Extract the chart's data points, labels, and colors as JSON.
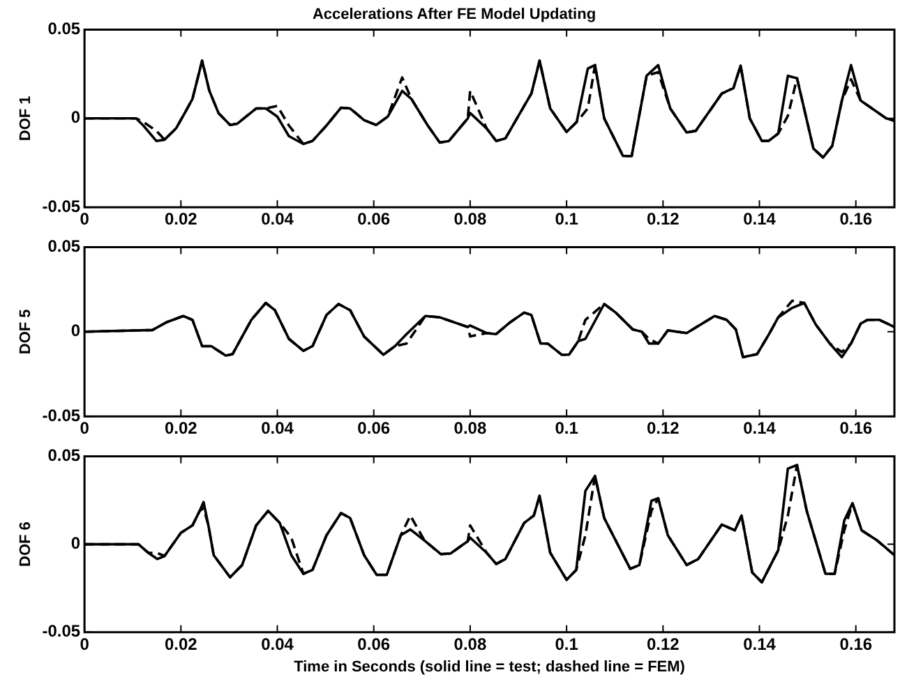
{
  "chart_data": [
    {
      "type": "line",
      "title": "Accelerations After FE Model Updating",
      "ylabel": "DOF 1",
      "xlim": [
        0,
        0.168
      ],
      "xticks": [
        0,
        0.02,
        0.04,
        0.06,
        0.08,
        0.1,
        0.12,
        0.14,
        0.16
      ],
      "ylim": [
        -0.05,
        0.05
      ],
      "yticks": [
        -0.05,
        0,
        0.05
      ],
      "grid": false,
      "legend": false,
      "marker": "none",
      "x": [
        0,
        0.0107,
        0.0122,
        0.0149,
        0.0166,
        0.019,
        0.021,
        0.0224,
        0.0244,
        0.0259,
        0.0278,
        0.0302,
        0.0317,
        0.0356,
        0.0376,
        0.04,
        0.0424,
        0.0454,
        0.0473,
        0.0502,
        0.0532,
        0.0551,
        0.058,
        0.0605,
        0.0629,
        0.0659,
        0.0678,
        0.0712,
        0.0737,
        0.0756,
        0.0795,
        0.08,
        0.0834,
        0.0854,
        0.0873,
        0.0912,
        0.0927,
        0.0944,
        0.0966,
        0.1,
        0.1021,
        0.1044,
        0.1059,
        0.1078,
        0.1117,
        0.1135,
        0.1166,
        0.119,
        0.1215,
        0.1249,
        0.1268,
        0.1322,
        0.1346,
        0.1361,
        0.138,
        0.1405,
        0.1419,
        0.1439,
        0.1459,
        0.1478,
        0.1512,
        0.1532,
        0.1551,
        0.1571,
        0.159,
        0.161,
        0.1663,
        0.168
      ],
      "series": [
        {
          "color": "#000000",
          "line_style": "solid",
          "values": [
            0,
            0,
            -0.004,
            -0.0127,
            -0.012,
            -0.0056,
            0.004,
            0.011,
            0.0325,
            0.0155,
            0.003,
            -0.0037,
            -0.003,
            0.0056,
            0.0056,
            0.001,
            -0.01,
            -0.0144,
            -0.0127,
            -0.004,
            0.006,
            0.0056,
            -0.001,
            -0.0037,
            0.001,
            0.0155,
            0.011,
            -0.004,
            -0.0136,
            -0.0127,
            0,
            0.003,
            -0.0056,
            -0.0127,
            -0.0113,
            0.007,
            0.014,
            0.0325,
            0.0056,
            -0.0076,
            -0.002,
            0.028,
            0.03,
            0,
            -0.0212,
            -0.0212,
            0.024,
            0.03,
            0.0056,
            -0.0079,
            -0.007,
            0.014,
            0.017,
            0.0297,
            0,
            -0.0127,
            -0.0127,
            -0.0085,
            0.024,
            0.0226,
            -0.017,
            -0.022,
            -0.0155,
            0.01,
            0.03,
            0.01,
            0,
            -0.0014
          ]
        },
        {
          "color": "#000000",
          "line_style": "dashed",
          "values": [
            0,
            0,
            -0.002,
            -0.007,
            -0.012,
            -0.0056,
            0.004,
            0.011,
            0.0325,
            0.0155,
            0.003,
            -0.0037,
            -0.003,
            0.0056,
            0.0056,
            0.007,
            -0.004,
            -0.0144,
            -0.0127,
            -0.004,
            0.006,
            0.0056,
            -0.001,
            -0.0037,
            0.001,
            0.023,
            0.011,
            -0.004,
            -0.0136,
            -0.0127,
            0,
            0.0155,
            -0.0056,
            -0.0127,
            -0.0113,
            0.007,
            0.014,
            0.0325,
            0.0056,
            -0.0076,
            -0.002,
            0.0056,
            0.03,
            0,
            -0.0212,
            -0.0212,
            0.024,
            0.026,
            0.0056,
            -0.0079,
            -0.007,
            0.014,
            0.017,
            0.0297,
            0,
            -0.0127,
            -0.0127,
            -0.0085,
            0.0014,
            0.0226,
            -0.017,
            -0.022,
            -0.0155,
            0.01,
            0.022,
            0.01,
            0,
            -0.0014
          ]
        }
      ]
    },
    {
      "type": "line",
      "ylabel": "DOF 5",
      "xlim": [
        0,
        0.168
      ],
      "xticks": [
        0,
        0.02,
        0.04,
        0.06,
        0.08,
        0.1,
        0.12,
        0.14,
        0.16
      ],
      "ylim": [
        -0.05,
        0.05
      ],
      "yticks": [
        -0.05,
        0,
        0.05
      ],
      "grid": false,
      "legend": false,
      "marker": "none",
      "x": [
        0,
        0.0141,
        0.017,
        0.0205,
        0.0224,
        0.0244,
        0.0263,
        0.0293,
        0.0307,
        0.0346,
        0.0376,
        0.0395,
        0.0424,
        0.0454,
        0.0473,
        0.0502,
        0.0527,
        0.0551,
        0.058,
        0.062,
        0.0644,
        0.0668,
        0.0707,
        0.0737,
        0.0795,
        0.08,
        0.0834,
        0.0854,
        0.0883,
        0.0912,
        0.0927,
        0.0946,
        0.0961,
        0.099,
        0.1005,
        0.1024,
        0.1039,
        0.1078,
        0.1102,
        0.1137,
        0.1156,
        0.1171,
        0.119,
        0.121,
        0.1249,
        0.1307,
        0.1332,
        0.1351,
        0.1366,
        0.1395,
        0.142,
        0.1439,
        0.1468,
        0.1493,
        0.1517,
        0.1546,
        0.1571,
        0.159,
        0.161,
        0.1624,
        0.1649,
        0.168
      ],
      "series": [
        {
          "color": "#000000",
          "line_style": "solid",
          "values": [
            0,
            0.001,
            0.0056,
            0.0093,
            0.007,
            -0.0085,
            -0.0085,
            -0.0141,
            -0.0133,
            0.007,
            0.017,
            0.0127,
            -0.0042,
            -0.0113,
            -0.0085,
            0.0099,
            0.0164,
            0.0127,
            -0.0028,
            -0.0136,
            -0.0085,
            -0.0014,
            0.0093,
            0.0085,
            0.0028,
            0.0037,
            -0.0008,
            -0.0014,
            0.0056,
            0.0113,
            0.0099,
            -0.007,
            -0.007,
            -0.0136,
            -0.0136,
            -0.0056,
            -0.0042,
            0.0164,
            0.0113,
            0.0014,
            0,
            -0.007,
            -0.007,
            0.0008,
            -0.0008,
            0.0093,
            0.007,
            0.0014,
            -0.015,
            -0.0133,
            -0.0014,
            0.0085,
            0.0141,
            0.017,
            0.0042,
            -0.007,
            -0.015,
            -0.007,
            0.0048,
            0.007,
            0.007,
            0.0028
          ]
        },
        {
          "color": "#000000",
          "line_style": "dashed",
          "values": [
            0,
            0.001,
            0.0056,
            0.0093,
            0.007,
            -0.0085,
            -0.0085,
            -0.0141,
            -0.0133,
            0.007,
            0.017,
            0.0127,
            -0.0042,
            -0.0113,
            -0.0085,
            0.0099,
            0.0164,
            0.0127,
            -0.0028,
            -0.0136,
            -0.0085,
            -0.007,
            0.0093,
            0.0085,
            0.0028,
            -0.0028,
            -0.0008,
            -0.0014,
            0.0056,
            0.0113,
            0.0099,
            -0.007,
            -0.007,
            -0.0136,
            -0.0136,
            -0.0056,
            0.007,
            0.0164,
            0.0113,
            0.0014,
            0,
            -0.0042,
            -0.007,
            0.0008,
            -0.0008,
            0.0093,
            0.007,
            0.0014,
            -0.015,
            -0.0133,
            -0.0014,
            0.0085,
            0.0183,
            0.017,
            0.0042,
            -0.007,
            -0.012,
            -0.007,
            0.0048,
            0.007,
            0.007,
            0.0028
          ]
        }
      ]
    },
    {
      "type": "line",
      "ylabel": "DOF 6",
      "xlabel": "Time in Seconds (solid line = test; dashed line = FEM)",
      "xlim": [
        0,
        0.168
      ],
      "xticks": [
        0,
        0.02,
        0.04,
        0.06,
        0.08,
        0.1,
        0.12,
        0.14,
        0.16
      ],
      "ylim": [
        -0.05,
        0.05
      ],
      "yticks": [
        -0.05,
        0,
        0.05
      ],
      "grid": false,
      "legend": false,
      "marker": "none",
      "x": [
        0,
        0.0112,
        0.0132,
        0.0151,
        0.0166,
        0.02,
        0.0224,
        0.0239,
        0.0247,
        0.0257,
        0.0268,
        0.0302,
        0.0327,
        0.0356,
        0.0381,
        0.0405,
        0.0429,
        0.0454,
        0.0473,
        0.0502,
        0.0532,
        0.0551,
        0.058,
        0.0606,
        0.0627,
        0.0656,
        0.0676,
        0.0705,
        0.0739,
        0.0759,
        0.0795,
        0.08,
        0.0834,
        0.0854,
        0.0873,
        0.0912,
        0.0932,
        0.0944,
        0.0966,
        0.1,
        0.102,
        0.1039,
        0.1059,
        0.1078,
        0.1132,
        0.1151,
        0.1176,
        0.119,
        0.121,
        0.1249,
        0.1273,
        0.1322,
        0.1349,
        0.1363,
        0.1385,
        0.1405,
        0.1439,
        0.1459,
        0.1478,
        0.1498,
        0.1537,
        0.1556,
        0.1576,
        0.1593,
        0.1612,
        0.1644,
        0.168
      ],
      "series": [
        {
          "color": "#000000",
          "line_style": "solid",
          "values": [
            0,
            0,
            -0.0048,
            -0.0084,
            -0.0067,
            0.0065,
            0.0107,
            0.019,
            0.024,
            0.0107,
            -0.0062,
            -0.0188,
            -0.0118,
            0.0107,
            0.019,
            0.0121,
            -0.0062,
            -0.0168,
            -0.0146,
            0.0051,
            0.0177,
            0.0149,
            -0.0062,
            -0.0174,
            -0.0174,
            0.0051,
            0.0084,
            0.0022,
            -0.0056,
            -0.0053,
            0.0017,
            0.0037,
            -0.0048,
            -0.0112,
            -0.0084,
            0.0121,
            0.0163,
            0.0275,
            -0.0048,
            -0.0202,
            -0.0146,
            0.0303,
            0.0388,
            0.0149,
            -0.014,
            -0.0118,
            0.0247,
            0.0261,
            0.0051,
            -0.0118,
            -0.0084,
            0.0112,
            0.0079,
            0.0163,
            -0.016,
            -0.0216,
            -0.0034,
            0.043,
            0.045,
            0.0191,
            -0.0168,
            -0.0168,
            0.0135,
            0.0233,
            0.0079,
            0.0022,
            -0.0062
          ]
        },
        {
          "color": "#000000",
          "line_style": "dashed",
          "values": [
            0,
            0,
            -0.0048,
            -0.005,
            -0.0067,
            0.0065,
            0.0107,
            0.019,
            0.0205,
            0.0107,
            -0.0062,
            -0.0188,
            -0.0118,
            0.0107,
            0.019,
            0.0121,
            0.0037,
            -0.0168,
            -0.0146,
            0.0051,
            0.0177,
            0.0149,
            -0.0062,
            -0.0174,
            -0.0174,
            0.0051,
            0.0163,
            0.0022,
            -0.0056,
            -0.0053,
            0.0017,
            0.0107,
            -0.0048,
            -0.0112,
            -0.0084,
            0.0121,
            0.0163,
            0.0275,
            -0.0048,
            -0.0202,
            -0.0146,
            0.0051,
            0.0388,
            0.0149,
            -0.014,
            -0.0118,
            0.019,
            0.0261,
            0.0051,
            -0.0118,
            -0.0084,
            0.0112,
            0.0079,
            0.0163,
            -0.016,
            -0.0216,
            -0.0034,
            0.0163,
            0.045,
            0.0191,
            -0.0168,
            -0.0168,
            0.0079,
            0.0233,
            0.0079,
            0.0022,
            -0.0062
          ]
        }
      ]
    }
  ]
}
